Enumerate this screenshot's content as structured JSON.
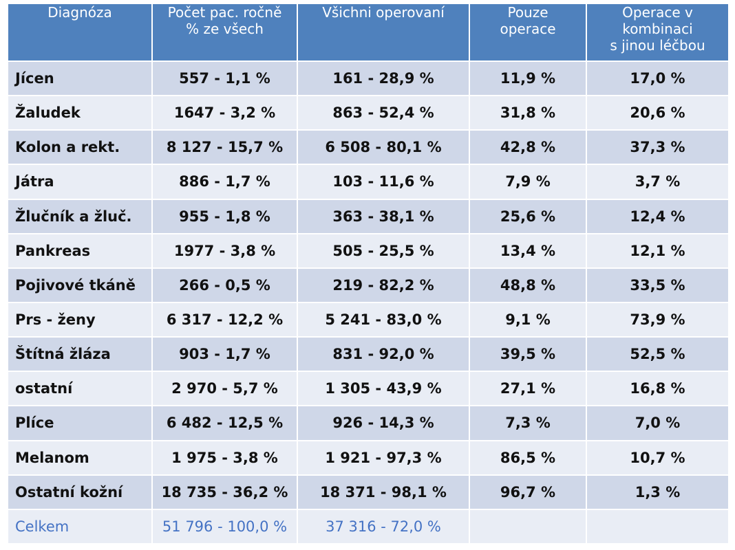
{
  "chart_data": {
    "type": "table",
    "columns": [
      "Diagnóza",
      "Počet pac. ročně\n% ze všech",
      "Všichni operovaní",
      "Pouze\noperace",
      "Operace v\nkombinaci\ns jinou léčbou"
    ],
    "rows": [
      [
        "Jícen",
        "557 - 1,1 %",
        "161 - 28,9 %",
        "11,9 %",
        "17,0 %"
      ],
      [
        "Žaludek",
        "1647 - 3,2 %",
        "863 - 52,4 %",
        "31,8 %",
        "20,6 %"
      ],
      [
        "Kolon a rekt.",
        "8 127 - 15,7 %",
        "6 508 - 80,1 %",
        "42,8 %",
        "37,3 %"
      ],
      [
        "Játra",
        "886 - 1,7 %",
        "103 - 11,6 %",
        "7,9 %",
        "3,7 %"
      ],
      [
        "Žlučník a žluč.",
        "955 - 1,8 %",
        "363 - 38,1 %",
        "25,6 %",
        "12,4 %"
      ],
      [
        "Pankreas",
        "1977 - 3,8 %",
        "505 - 25,5 %",
        "13,4 %",
        "12,1 %"
      ],
      [
        "Pojivové tkáně",
        "266 - 0,5 %",
        "219 - 82,2 %",
        "48,8 %",
        "33,5 %"
      ],
      [
        "Prs - ženy",
        "6 317 - 12,2 %",
        "5 241 - 83,0 %",
        "9,1 %",
        "73,9 %"
      ],
      [
        "Štítná žláza",
        "903 - 1,7 %",
        "831 - 92,0 %",
        "39,5 %",
        "52,5 %"
      ],
      [
        "ostatní",
        "2 970 - 5,7 %",
        "1 305 - 43,9 %",
        "27,1 %",
        "16,8 %"
      ],
      [
        "Plíce",
        "6 482 - 12,5 %",
        "926 - 14,3 %",
        "7,3 %",
        "7,0 %"
      ],
      [
        "Melanom",
        "1 975 - 3,8 %",
        "1 921 - 97,3 %",
        "86,5 %",
        "10,7 %"
      ],
      [
        "Ostatní kožní",
        "18 735 - 36,2 %",
        "18 371 - 98,1 %",
        "96,7 %",
        "1,3 %"
      ]
    ],
    "total_row": [
      "Celkem",
      "51 796 - 100,0 %",
      "37 316 - 72,0 %",
      "",
      ""
    ],
    "colors": {
      "header_bg": "#4f81bd",
      "header_text": "#ffffff",
      "row_dark": "#cfd7e8",
      "row_light": "#e9edf5",
      "total_text": "#4472c4"
    }
  }
}
